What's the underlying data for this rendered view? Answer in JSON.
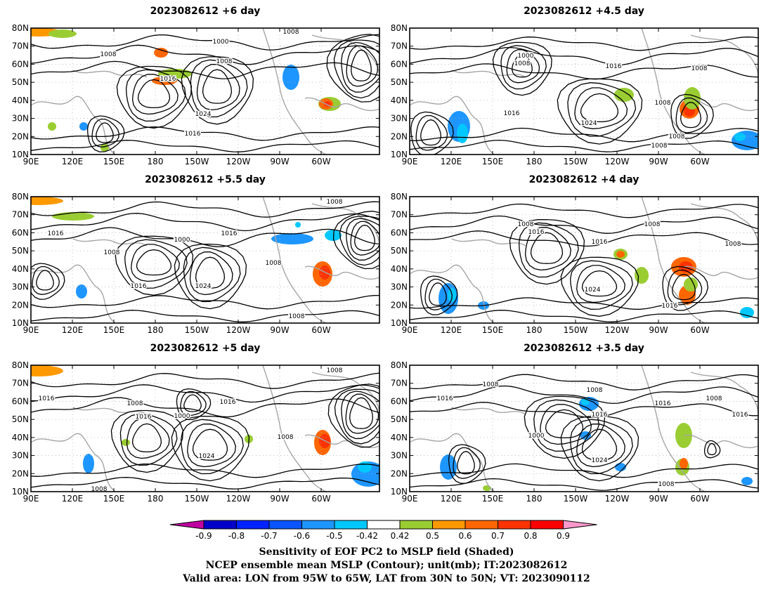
{
  "figure": {
    "panels": [
      {
        "title": "2023082612 +6 day",
        "lead": "+6 day"
      },
      {
        "title": "2023082612 +4.5 day",
        "lead": "+4.5 day"
      },
      {
        "title": "2023082612 +5.5 day",
        "lead": "+5.5 day"
      },
      {
        "title": "2023082612 +4 day",
        "lead": "+4 day"
      },
      {
        "title": "2023082612 +5 day",
        "lead": "+5 day"
      },
      {
        "title": "2023082612 +3.5 day",
        "lead": "+3.5 day"
      }
    ],
    "lon_labels": [
      "90E",
      "120E",
      "150E",
      "180",
      "150W",
      "120W",
      "90W",
      "60W"
    ],
    "lat_labels": [
      "80N",
      "70N",
      "60N",
      "50N",
      "40N",
      "30N",
      "20N",
      "10N"
    ],
    "contour_labels": [
      "1000",
      "1008",
      "1016",
      "1024"
    ],
    "colorbar": {
      "ticks": [
        "-0.9",
        "-0.8",
        "-0.7",
        "-0.6",
        "-0.5",
        "-0.42",
        "0.42",
        "0.5",
        "0.6",
        "0.7",
        "0.8",
        "0.9"
      ],
      "colors": [
        "#c000a0",
        "#0000c8",
        "#0022ff",
        "#0a55ff",
        "#1e96ff",
        "#00c8ff",
        "#ffffff",
        "#9acd32",
        "#ff9900",
        "#ff6600",
        "#ff3300",
        "#ff0000",
        "#ff99cc"
      ]
    },
    "captions": [
      "Sensitivity of EOF PC2 to MSLP field (Shaded)",
      "NCEP ensemble mean MSLP (Contour); unit(mb); IT:2023082612",
      "Valid area: LON from 95W to 65W, LAT from 30N to 50N; VT: 2023090112"
    ]
  }
}
